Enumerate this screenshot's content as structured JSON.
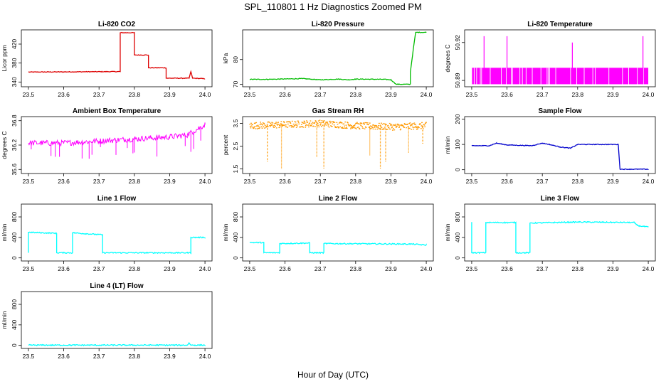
{
  "figure": {
    "title": "SPL_110801  1 Hz Diagnostics Zoomed PM",
    "xlabel": "Hour of Day (UTC)"
  },
  "chart_data": [
    {
      "type": "line",
      "title": "Li-820 CO2",
      "ylabel": "Licor ppm",
      "color": "#dd0000",
      "xlim": [
        23.48,
        24.02
      ],
      "ylim": [
        330,
        450
      ],
      "xticks": [
        "23.5",
        "23.6",
        "23.7",
        "23.8",
        "23.9",
        "24.0"
      ],
      "yticks": [
        "340",
        "380",
        "420"
      ],
      "x": [
        23.5,
        23.76,
        23.76,
        23.8,
        23.8,
        23.84,
        23.84,
        23.89,
        23.89,
        23.955,
        23.96,
        23.965,
        24.0
      ],
      "y": [
        361,
        362,
        444,
        444,
        397,
        397,
        370,
        370,
        348,
        348,
        362,
        348,
        347
      ]
    },
    {
      "type": "line",
      "title": "Li-820 Pressure",
      "ylabel": "kPa",
      "color": "#00bb00",
      "xlim": [
        23.48,
        24.02
      ],
      "ylim": [
        69,
        92
      ],
      "xticks": [
        "23.5",
        "23.6",
        "23.7",
        "23.8",
        "23.9",
        "24.0"
      ],
      "yticks": [
        "70",
        "80"
      ],
      "x": [
        23.5,
        23.55,
        23.65,
        23.7,
        23.75,
        23.78,
        23.8,
        23.88,
        23.9,
        23.915,
        23.955,
        23.955,
        23.965,
        23.97,
        24.0
      ],
      "y": [
        72,
        72,
        72.3,
        71.8,
        72.1,
        71.8,
        72.1,
        72,
        71.8,
        70,
        70,
        75,
        86,
        91,
        91
      ]
    },
    {
      "type": "line",
      "title": "Li-820 Temperature",
      "ylabel": "degrees C",
      "color": "#ff00ff",
      "xlim": [
        23.48,
        24.02
      ],
      "ylim": [
        50.885,
        50.93
      ],
      "xticks": [
        "23.5",
        "23.6",
        "23.7",
        "23.8",
        "23.9",
        "24.0"
      ],
      "yticks": [
        "50.89",
        "50.92"
      ],
      "x": [
        23.5,
        23.535,
        23.6,
        23.785,
        23.985,
        24.0
      ],
      "y": [
        50.9,
        50.925,
        50.925,
        50.92,
        50.925,
        50.9
      ],
      "band_low": 50.887,
      "band_high": 50.9
    },
    {
      "type": "line",
      "title": "Ambient Box Temperature",
      "ylabel": "degrees C",
      "color": "#ff00ff",
      "xlim": [
        23.48,
        24.02
      ],
      "ylim": [
        35.5,
        36.9
      ],
      "xticks": [
        "23.5",
        "23.6",
        "23.7",
        "23.8",
        "23.9",
        "24.0"
      ],
      "yticks": [
        "35.6",
        "36.2",
        "36.8"
      ],
      "x": [
        23.5,
        23.6,
        23.7,
        23.8,
        23.9,
        23.95,
        24.0
      ],
      "y": [
        36.25,
        36.25,
        36.3,
        36.35,
        36.4,
        36.45,
        36.7
      ]
    },
    {
      "type": "scatter",
      "title": "Gas Stream RH",
      "ylabel": "percent",
      "color": "#ff9900",
      "xlim": [
        23.48,
        24.02
      ],
      "ylim": [
        1.3,
        3.8
      ],
      "xticks": [
        "23.5",
        "23.6",
        "23.7",
        "23.8",
        "23.9",
        "24.0"
      ],
      "yticks": [
        "1.5",
        "2.5",
        "3.5"
      ],
      "x": [
        23.5,
        23.6,
        23.7,
        23.8,
        23.9,
        24.0
      ],
      "y": [
        3.4,
        3.45,
        3.5,
        3.4,
        3.35,
        3.4
      ],
      "dips_x": [
        23.55,
        23.59,
        23.69,
        23.71,
        23.84,
        23.87,
        23.885,
        23.95,
        23.99
      ],
      "dips_y": [
        1.8,
        1.5,
        2.0,
        1.5,
        2.1,
        1.5,
        1.8,
        2.2,
        2.6
      ]
    },
    {
      "type": "line",
      "title": "Sample Flow",
      "ylabel": "ml/min",
      "color": "#0000cc",
      "xlim": [
        23.48,
        24.02
      ],
      "ylim": [
        -15,
        210
      ],
      "xticks": [
        "23.5",
        "23.6",
        "23.7",
        "23.8",
        "23.9",
        "24.0"
      ],
      "yticks": [
        "0",
        "100",
        "200"
      ],
      "x": [
        23.5,
        23.55,
        23.57,
        23.6,
        23.67,
        23.7,
        23.72,
        23.75,
        23.78,
        23.8,
        23.85,
        23.915,
        23.92,
        24.0
      ],
      "y": [
        95,
        95,
        105,
        98,
        95,
        105,
        100,
        90,
        85,
        100,
        100,
        100,
        2,
        2
      ]
    },
    {
      "type": "line",
      "title": "Line 1 Flow",
      "ylabel": "ml/min",
      "color": "#00ffff",
      "xlim": [
        23.48,
        24.02
      ],
      "ylim": [
        -60,
        1050
      ],
      "xticks": [
        "23.5",
        "23.6",
        "23.7",
        "23.8",
        "23.9",
        "24.0"
      ],
      "yticks": [
        "0",
        "400",
        "800"
      ],
      "x": [
        23.5,
        23.5,
        23.58,
        23.58,
        23.625,
        23.625,
        23.71,
        23.71,
        23.96,
        23.96,
        24.0
      ],
      "y": [
        100,
        500,
        480,
        100,
        100,
        490,
        450,
        100,
        100,
        400,
        400
      ]
    },
    {
      "type": "line",
      "title": "Line 2 Flow",
      "ylabel": "ml/min",
      "color": "#00ffff",
      "xlim": [
        23.48,
        24.02
      ],
      "ylim": [
        -60,
        1050
      ],
      "xticks": [
        "23.5",
        "23.6",
        "23.7",
        "23.8",
        "23.9",
        "24.0"
      ],
      "yticks": [
        "0",
        "400",
        "800"
      ],
      "x": [
        23.5,
        23.54,
        23.54,
        23.585,
        23.585,
        23.67,
        23.67,
        23.71,
        23.71,
        23.96,
        24.0
      ],
      "y": [
        300,
        300,
        100,
        100,
        280,
        290,
        100,
        100,
        280,
        270,
        250
      ]
    },
    {
      "type": "line",
      "title": "Line 3 Flow",
      "ylabel": "ml/min",
      "color": "#00ffff",
      "xlim": [
        23.48,
        24.02
      ],
      "ylim": [
        -60,
        1050
      ],
      "xticks": [
        "23.5",
        "23.6",
        "23.7",
        "23.8",
        "23.9",
        "24.0"
      ],
      "yticks": [
        "0",
        "400",
        "800"
      ],
      "x": [
        23.5,
        23.5,
        23.54,
        23.54,
        23.625,
        23.625,
        23.665,
        23.665,
        23.8,
        23.96,
        23.97,
        24.0
      ],
      "y": [
        700,
        100,
        100,
        690,
        690,
        100,
        100,
        680,
        700,
        690,
        630,
        600
      ]
    },
    {
      "type": "line",
      "title": "Line 4 (LT) Flow",
      "ylabel": "ml/min",
      "color": "#00ffff",
      "xlim": [
        23.48,
        24.02
      ],
      "ylim": [
        -60,
        1050
      ],
      "xticks": [
        "23.5",
        "23.6",
        "23.7",
        "23.8",
        "23.9",
        "24.0"
      ],
      "yticks": [
        "0",
        "400",
        "800"
      ],
      "x": [
        23.5,
        23.95,
        23.955,
        23.96,
        23.97,
        24.0
      ],
      "y": [
        5,
        5,
        50,
        5,
        5,
        5
      ]
    }
  ]
}
